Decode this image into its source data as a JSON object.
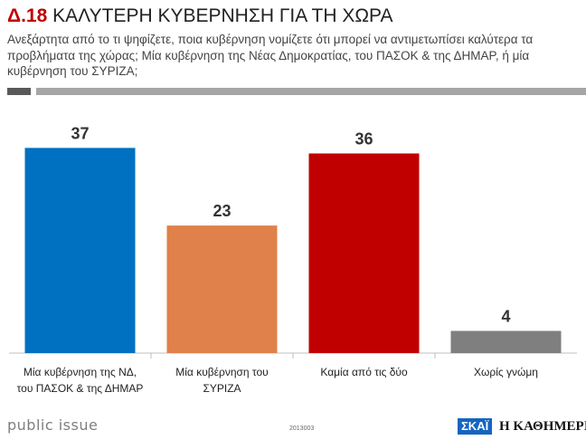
{
  "header": {
    "code": "Δ.18",
    "title": "ΚΑΛΥΤΕΡΗ ΚΥΒΕΡΝΗΣΗ ΓΙΑ ΤΗ ΧΩΡΑ",
    "question": "Ανεξάρτητα από το τι ψηφίζετε, ποια κυβέρνηση νομίζετε ότι μπορεί να αντιμετωπίσει καλύτερα τα προβλήματα της χώρας; Μία κυβέρνηση της Νέας Δημοκρατίας, του ΠΑΣΟΚ & της ΔΗΜΑΡ, ή μία κυβέρνηση του ΣΥΡΙΖΑ;"
  },
  "chart_data": {
    "type": "bar",
    "title": "ΚΑΛΥΤΕΡΗ ΚΥΒΕΡΝΗΣΗ ΓΙΑ ΤΗ ΧΩΡΑ",
    "xlabel": "",
    "ylabel": "",
    "ylim": [
      0,
      40
    ],
    "categories": [
      [
        "Μία κυβέρνηση της ΝΔ,",
        "του ΠΑΣΟΚ & της ΔΗΜΑΡ"
      ],
      [
        "Μία κυβέρνηση του",
        "ΣΥΡΙΖΑ"
      ],
      [
        "Καμία από τις δύο"
      ],
      [
        "Χωρίς γνώμη"
      ]
    ],
    "values": [
      37,
      23,
      36,
      4
    ],
    "colors": [
      "#0070c0",
      "#e0804a",
      "#c00000",
      "#7f7f7f"
    ],
    "grid": false
  },
  "footer": {
    "brand": "public issue",
    "code": "2013003",
    "logo_skai": "ΣΚΑΪ",
    "logo_kathimerini": "Η ΚΑΘΗΜΕΡΙΝΗ"
  }
}
